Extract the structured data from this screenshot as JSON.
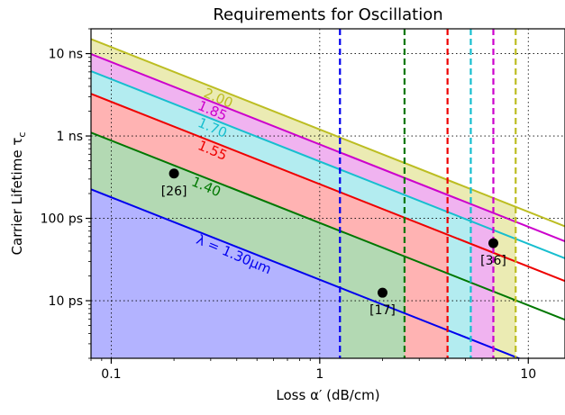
{
  "chart_data": {
    "type": "line",
    "title": "Requirements for Oscillation",
    "xlabel": "Loss α′ (dB/cm)",
    "ylabel": "Carrier Lifetime τ",
    "ylabel_sub": "c",
    "x_scale": "log",
    "y_scale": "log",
    "xlim": [
      0.08,
      15
    ],
    "ylim_s": [
      2e-12,
      2e-08
    ],
    "grid": "dotted",
    "x_ticks": [
      {
        "value": 0.1,
        "label": "0.1"
      },
      {
        "value": 1,
        "label": "1"
      },
      {
        "value": 10,
        "label": "10"
      }
    ],
    "y_ticks": [
      {
        "value": 1e-11,
        "label": "10 ps"
      },
      {
        "value": 1e-10,
        "label": "100 ps"
      },
      {
        "value": 1e-09,
        "label": "1 ns"
      },
      {
        "value": 1e-08,
        "label": "10 ns"
      }
    ],
    "series": [
      {
        "label": "λ = 1.30μm",
        "color": "#0000ee",
        "fill": "#b3b3ff",
        "tau_at_x0_1_s": 1.8e-10,
        "cutoff_loss": 1.25,
        "label_x": 0.38,
        "label_rotation": 23
      },
      {
        "label": "1.40",
        "color": "#007700",
        "fill": "#b3d9b3",
        "tau_at_x0_1_s": 8.8e-10,
        "cutoff_loss": 2.55,
        "label_x": 0.28,
        "label_rotation": 23
      },
      {
        "label": "1.55",
        "color": "#ee0000",
        "fill": "#ffb3b3",
        "tau_at_x0_1_s": 2.6e-09,
        "cutoff_loss": 4.1,
        "label_x": 0.3,
        "label_rotation": 23
      },
      {
        "label": "1.70",
        "color": "#17becf",
        "fill": "#b3ecf0",
        "tau_at_x0_1_s": 4.9e-09,
        "cutoff_loss": 5.3,
        "label_x": 0.3,
        "label_rotation": 23
      },
      {
        "label": "1.85",
        "color": "#cc00cc",
        "fill": "#f0b3f0",
        "tau_at_x0_1_s": 7.9e-09,
        "cutoff_loss": 6.8,
        "label_x": 0.3,
        "label_rotation": 23
      },
      {
        "label": "2.00",
        "color": "#bcbd22",
        "fill": "#ebebb3",
        "tau_at_x0_1_s": 1.2e-08,
        "cutoff_loss": 8.7,
        "label_x": 0.32,
        "label_rotation": 23
      }
    ],
    "points": [
      {
        "label": "[26]",
        "x": 0.2,
        "tau_s": 3.5e-10
      },
      {
        "label": "[17]",
        "x": 2.0,
        "tau_s": 1.25e-11
      },
      {
        "label": "[36]",
        "x": 6.8,
        "tau_s": 5e-11
      }
    ]
  }
}
